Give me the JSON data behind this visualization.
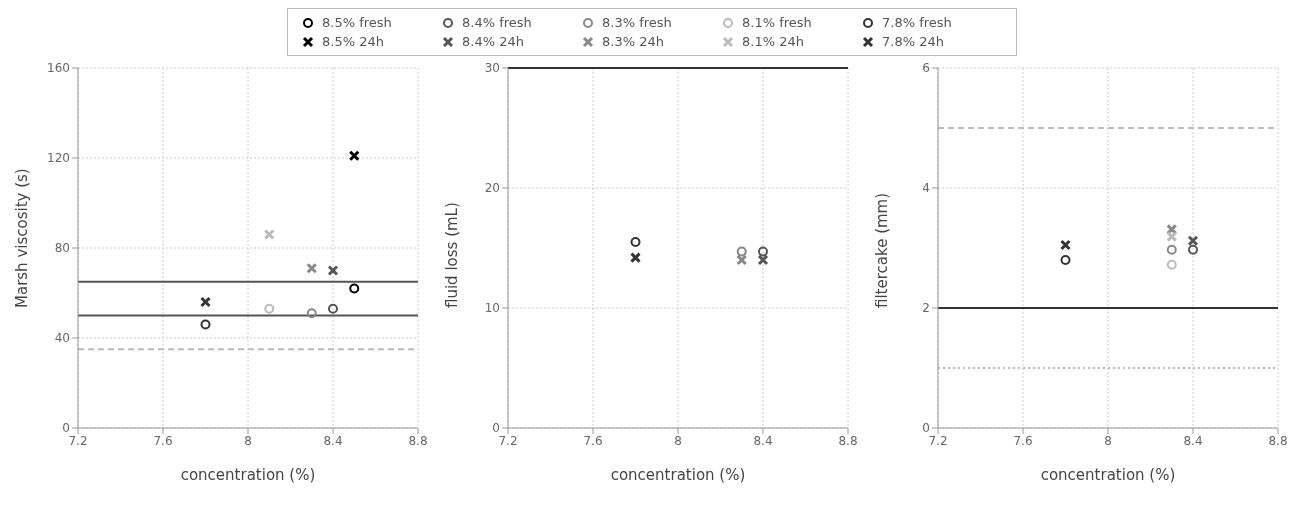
{
  "chart_data": [
    {
      "type": "scatter",
      "xlabel": "concentration (%)",
      "ylabel": "Marsh viscosity (s)",
      "xlim": [
        7.2,
        8.8
      ],
      "xticks": [
        7.2,
        7.6,
        8,
        8.4,
        8.8
      ],
      "ylim": [
        0,
        160
      ],
      "yticks": [
        0,
        40,
        80,
        120,
        160
      ],
      "grid": true,
      "legend": "top",
      "series": [
        {
          "name": "8.5% fresh",
          "color": "#000000",
          "marker": "circle",
          "x": [
            8.5
          ],
          "values": [
            62
          ]
        },
        {
          "name": "8.4% fresh",
          "color": "#555555",
          "marker": "circle",
          "x": [
            8.4
          ],
          "values": [
            53
          ]
        },
        {
          "name": "8.3% fresh",
          "color": "#888888",
          "marker": "circle",
          "x": [
            8.3
          ],
          "values": [
            51
          ]
        },
        {
          "name": "8.1% fresh",
          "color": "#bbbbbb",
          "marker": "circle",
          "x": [
            8.1
          ],
          "values": [
            53
          ]
        },
        {
          "name": "7.8% fresh",
          "color": "#333333",
          "marker": "circle",
          "x": [
            7.8
          ],
          "values": [
            46
          ]
        },
        {
          "name": "8.5% 24h",
          "color": "#000000",
          "marker": "cross",
          "x": [
            8.5
          ],
          "values": [
            121
          ]
        },
        {
          "name": "8.4% 24h",
          "color": "#555555",
          "marker": "cross",
          "x": [
            8.4
          ],
          "values": [
            70
          ]
        },
        {
          "name": "8.3% 24h",
          "color": "#888888",
          "marker": "cross",
          "x": [
            8.3
          ],
          "values": [
            71
          ]
        },
        {
          "name": "8.1% 24h",
          "color": "#bbbbbb",
          "marker": "cross",
          "x": [
            8.1
          ],
          "values": [
            86
          ]
        },
        {
          "name": "7.8% 24h",
          "color": "#333333",
          "marker": "cross",
          "x": [
            7.8
          ],
          "values": [
            56
          ]
        }
      ],
      "ref_lines": [
        {
          "axis": "y",
          "value": 65,
          "color": "#555555",
          "line_style": "solid"
        },
        {
          "axis": "y",
          "value": 50,
          "color": "#555555",
          "line_style": "solid"
        },
        {
          "axis": "y",
          "value": 35,
          "color": "#bbbbbb",
          "line_style": "dashed"
        }
      ]
    },
    {
      "type": "scatter",
      "xlabel": "concentration (%)",
      "ylabel": "fluid loss (mL)",
      "xlim": [
        7.2,
        8.8
      ],
      "xticks": [
        7.2,
        7.6,
        8,
        8.4,
        8.8
      ],
      "ylim": [
        0,
        30
      ],
      "yticks": [
        0,
        10,
        20,
        30
      ],
      "grid": true,
      "series": [
        {
          "color": "#555555",
          "marker": "circle",
          "x": [
            8.4
          ],
          "values": [
            14.7
          ]
        },
        {
          "color": "#888888",
          "marker": "circle",
          "x": [
            8.3
          ],
          "values": [
            14.7
          ]
        },
        {
          "color": "#333333",
          "marker": "circle",
          "x": [
            7.8
          ],
          "values": [
            15.5
          ]
        },
        {
          "color": "#555555",
          "marker": "cross",
          "x": [
            8.4
          ],
          "values": [
            14.0
          ]
        },
        {
          "color": "#888888",
          "marker": "cross",
          "x": [
            8.3
          ],
          "values": [
            14.0
          ]
        },
        {
          "color": "#333333",
          "marker": "cross",
          "x": [
            7.8
          ],
          "values": [
            14.2
          ]
        }
      ],
      "ref_lines": [
        {
          "axis": "y",
          "value": 30,
          "color": "#333333",
          "line_style": "solid"
        }
      ]
    },
    {
      "type": "scatter",
      "xlabel": "concentration (%)",
      "ylabel": "filtercake (mm)",
      "xlim": [
        7.2,
        8.8
      ],
      "xticks": [
        7.2,
        7.6,
        8,
        8.4,
        8.8
      ],
      "ylim": [
        0,
        6
      ],
      "yticks": [
        0,
        2,
        4,
        6
      ],
      "grid": true,
      "series": [
        {
          "color": "#555555",
          "marker": "circle",
          "x": [
            8.4
          ],
          "values": [
            2.97
          ]
        },
        {
          "color": "#888888",
          "marker": "circle",
          "x": [
            8.3
          ],
          "values": [
            2.97
          ]
        },
        {
          "color": "#bbbbbb",
          "marker": "circle",
          "x": [
            8.3
          ],
          "values": [
            2.72
          ]
        },
        {
          "color": "#333333",
          "marker": "circle",
          "x": [
            7.8
          ],
          "values": [
            2.8
          ]
        },
        {
          "color": "#555555",
          "marker": "cross",
          "x": [
            8.4
          ],
          "values": [
            3.12
          ]
        },
        {
          "color": "#888888",
          "marker": "cross",
          "x": [
            8.3
          ],
          "values": [
            3.31
          ]
        },
        {
          "color": "#bbbbbb",
          "marker": "cross",
          "x": [
            8.3
          ],
          "values": [
            3.19
          ]
        },
        {
          "color": "#333333",
          "marker": "cross",
          "x": [
            7.8
          ],
          "values": [
            3.05
          ]
        }
      ],
      "ref_lines": [
        {
          "axis": "y",
          "value": 2,
          "color": "#333333",
          "line_style": "solid"
        },
        {
          "axis": "y",
          "value": 5,
          "color": "#bbbbbb",
          "line_style": "dashed"
        },
        {
          "axis": "y",
          "value": 1,
          "color": "#bbbbbb",
          "line_style": "dotted"
        }
      ]
    }
  ]
}
